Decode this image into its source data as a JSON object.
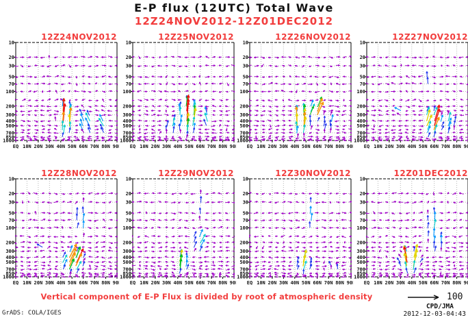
{
  "header": {
    "title": "E-P flux (12UTC) Total Wave",
    "subtitle": "12Z24NOV2012-12Z01DEC2012"
  },
  "caption": "Vertical component of E-P Flux is divided by root of atmospheric density",
  "legend": {
    "value": "100"
  },
  "footer": {
    "grads": "GrADS: COLA/IGES",
    "org": "CPD/JMA",
    "timestamp": "2012-12-03-04:43"
  },
  "colors": {
    "title_black": "#111111",
    "accent_red": "#f23d3d",
    "grid_gray": "#b4b4b4",
    "axis_black": "#000000",
    "background_arrow": "#a000c8"
  },
  "chart_data": {
    "type": "quiver",
    "title": "E-P flux (12UTC) Total Wave",
    "date_range": "12Z24NOV2012-12Z01DEC2012",
    "x_ticks": [
      "EQ",
      "10N",
      "20N",
      "30N",
      "40N",
      "50N",
      "60N",
      "70N",
      "80N",
      "90N"
    ],
    "y_ticks": [
      10,
      20,
      30,
      50,
      70,
      100,
      200,
      300,
      400,
      500,
      700,
      850,
      1000
    ],
    "y_scale": "log-pressure-hPa",
    "x_range_deg": [
      0,
      90
    ],
    "grid": "dotted",
    "reference_arrow_value": 100,
    "arrow_levels": [
      20,
      30,
      50,
      70,
      100,
      150,
      200,
      250,
      300,
      400,
      500,
      600,
      700,
      850,
      925,
      1000
    ],
    "arrow_lat_step": 6,
    "palette": [
      "#a000c8",
      "#2337ee",
      "#0096ff",
      "#00cdcd",
      "#00c020",
      "#e2d400",
      "#f59400",
      "#ee1111"
    ],
    "thresholds": [
      6.5,
      9.5,
      12.5,
      15.5,
      18.5,
      21.5,
      24.5
    ],
    "background_arrows": {
      "color": "#a000c8",
      "min_len": 3.0,
      "max_len": 6.5
    },
    "panels": [
      {
        "title": "12Z24NOV2012",
        "seed": 11,
        "regions": [
          {
            "la": 44,
            "lw": 6.5,
            "pt": 150,
            "pb": 1000,
            "mag": 26,
            "tilt": 0.05,
            "fan": 0,
            "boost": 1.12
          },
          {
            "la": 63,
            "lw": 7,
            "pt": 200,
            "pb": 1000,
            "mag": 15,
            "tilt": -0.45,
            "fan": 0,
            "boost": 1
          },
          {
            "la": 79,
            "lw": 5,
            "pt": 250,
            "pb": 1000,
            "mag": 12,
            "tilt": -0.55,
            "fan": 0,
            "boost": 1
          },
          {
            "la": 4,
            "lw": 5,
            "pt": 130,
            "pb": 220,
            "mag": 10,
            "tilt": 2.2,
            "fan": 0,
            "boost": 1
          }
        ]
      },
      {
        "title": "12Z25NOV2012",
        "seed": 22,
        "regions": [
          {
            "la": 49,
            "lw": 8,
            "pt": 130,
            "pb": 1000,
            "mag": 26,
            "tilt": 0.1,
            "fan": 0,
            "boost": 1.1
          },
          {
            "la": 34,
            "lw": 5,
            "pt": 300,
            "pb": 1000,
            "mag": 15,
            "tilt": 0.15,
            "fan": 0,
            "boost": 1
          },
          {
            "la": 66,
            "lw": 6,
            "pt": 200,
            "pb": 700,
            "mag": 13,
            "tilt": -0.25,
            "fan": 0,
            "boost": 1
          }
        ]
      },
      {
        "title": "12Z26NOV2012",
        "seed": 33,
        "regions": [
          {
            "la": 46,
            "lw": 8,
            "pt": 180,
            "pb": 1000,
            "mag": 23,
            "tilt": 0.05,
            "fan": 0,
            "boost": 1.1
          },
          {
            "la": 58,
            "lw": 6,
            "pt": 150,
            "pb": 450,
            "mag": 22,
            "tilt": 0.4,
            "fan": 0,
            "boost": 1.2
          },
          {
            "la": 69,
            "lw": 5,
            "pt": 200,
            "pb": 1000,
            "mag": 14,
            "tilt": 0.15,
            "fan": 0,
            "boost": 1
          }
        ]
      },
      {
        "title": "12Z27NOV2012",
        "seed": 44,
        "regions": [
          {
            "la": 58,
            "lw": 8,
            "pt": 200,
            "pb": 1000,
            "mag": 24,
            "tilt": 0.35,
            "fan": 0,
            "boost": 1.15
          },
          {
            "la": 73,
            "lw": 6,
            "pt": 250,
            "pb": 1000,
            "mag": 15,
            "tilt": 0.25,
            "fan": 0,
            "boost": 1
          },
          {
            "la": 52,
            "lw": 5,
            "pt": 30,
            "pb": 120,
            "mag": 11,
            "tilt": 0.05,
            "fan": 0,
            "boost": 1
          },
          {
            "la": 29,
            "lw": 5,
            "pt": 200,
            "pb": 350,
            "mag": 10,
            "tilt": -1.8,
            "fan": 0,
            "boost": 1
          }
        ]
      },
      {
        "title": "12Z28NOV2012",
        "seed": 55,
        "regions": [
          {
            "la": 50,
            "lw": 9,
            "pt": 250,
            "pb": 1000,
            "mag": 24,
            "tilt": 0.45,
            "fan": 0,
            "boost": 1.12
          },
          {
            "la": 58,
            "lw": 6,
            "pt": 18,
            "pb": 250,
            "mag": 13,
            "tilt": 0.1,
            "fan": 0,
            "boost": 1
          },
          {
            "la": 25,
            "lw": 5,
            "pt": 180,
            "pb": 300,
            "mag": 10,
            "tilt": -1.6,
            "fan": 0,
            "boost": 1
          }
        ]
      },
      {
        "title": "12Z29NOV2012",
        "seed": 66,
        "regions": [
          {
            "la": 43,
            "lw": 6,
            "pt": 300,
            "pb": 1000,
            "mag": 20,
            "tilt": 0.15,
            "fan": 0,
            "boost": 1.12
          },
          {
            "la": 58,
            "lw": 7,
            "pt": 100,
            "pb": 400,
            "mag": 15,
            "tilt": 0.5,
            "fan": 0,
            "boost": 1
          },
          {
            "la": 60,
            "lw": 5,
            "pt": 14,
            "pb": 100,
            "mag": 12,
            "tilt": 0.05,
            "fan": 0,
            "boost": 1
          }
        ]
      },
      {
        "title": "12Z30NOV2012",
        "seed": 77,
        "regions": [
          {
            "la": 48,
            "lw": 7,
            "pt": 300,
            "pb": 1000,
            "mag": 18,
            "tilt": 0.2,
            "fan": 0,
            "boost": 1.15
          },
          {
            "la": 55,
            "lw": 5,
            "pt": 18,
            "pb": 200,
            "mag": 12,
            "tilt": 0.05,
            "fan": 0,
            "boost": 1
          },
          {
            "la": 75,
            "lw": 5,
            "pt": 400,
            "pb": 1000,
            "mag": 10,
            "tilt": -0.25,
            "fan": 0,
            "boost": 1
          }
        ]
      },
      {
        "title": "12Z01DEC2012",
        "seed": 88,
        "regions": [
          {
            "la": 39,
            "lw": 8,
            "pt": 250,
            "pb": 1000,
            "mag": 24,
            "tilt": 0,
            "fan": 0.07,
            "boost": 1.12
          },
          {
            "la": 58,
            "lw": 5,
            "pt": 18,
            "pb": 600,
            "mag": 15,
            "tilt": 0.05,
            "fan": 0,
            "boost": 1
          },
          {
            "la": 65,
            "lw": 4,
            "pt": 100,
            "pb": 400,
            "mag": 11,
            "tilt": 0.1,
            "fan": 0,
            "boost": 1
          }
        ]
      }
    ]
  }
}
